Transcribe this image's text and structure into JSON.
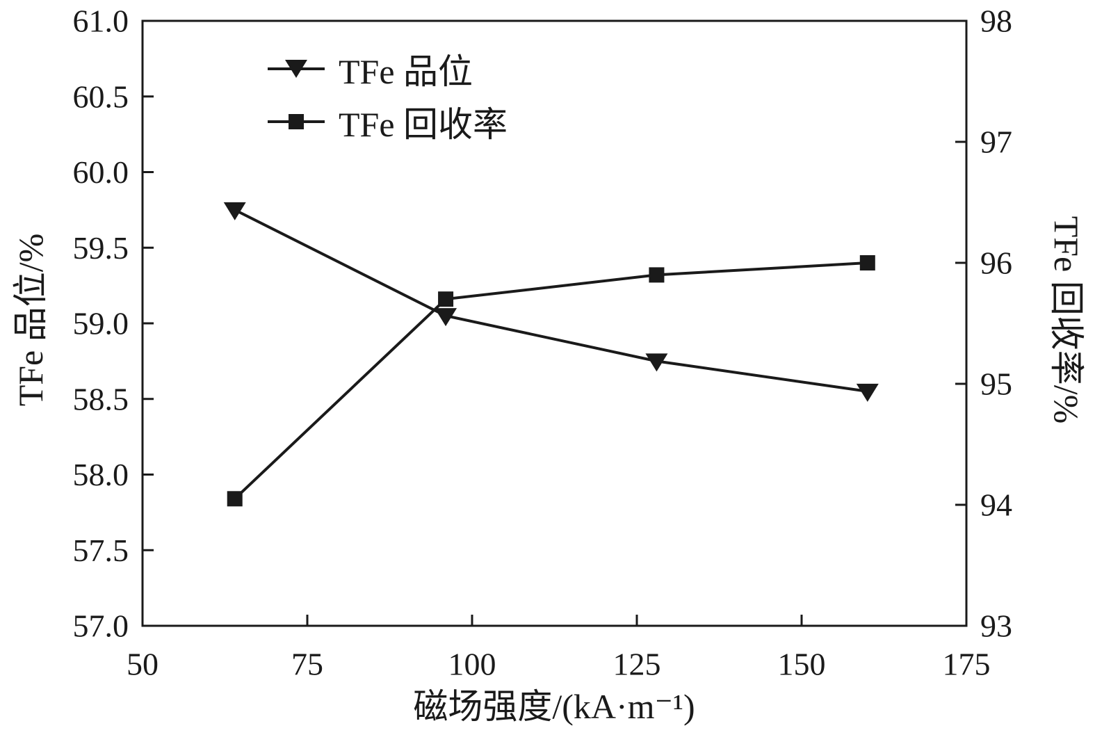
{
  "chart_data": {
    "type": "line",
    "x": [
      64,
      96,
      128,
      160
    ],
    "series": [
      {
        "name": "TFe 品位",
        "axis": "left",
        "marker": "triangle-down",
        "values": [
          59.75,
          59.05,
          58.75,
          58.55
        ]
      },
      {
        "name": "TFe 回收率",
        "axis": "right",
        "marker": "square",
        "values": [
          94.05,
          95.7,
          95.9,
          96.0
        ]
      }
    ],
    "title": "",
    "xlabel": "磁场强度/(kA·m⁻¹)",
    "ylabel_left": "TFe 品位/%",
    "ylabel_right": "TFe 回收率/%",
    "xlim": [
      50,
      175
    ],
    "ylim_left": [
      57.0,
      61.0
    ],
    "ylim_right": [
      93,
      98
    ],
    "xticks": [
      "50",
      "75",
      "100",
      "125",
      "150",
      "175"
    ],
    "yticks_left": [
      "57.0",
      "57.5",
      "58.0",
      "58.5",
      "59.0",
      "59.5",
      "60.0",
      "60.5",
      "61.0"
    ],
    "yticks_right": [
      "93",
      "94",
      "95",
      "96",
      "97",
      "98"
    ],
    "grid": false,
    "legend_position": "upper-left-inside",
    "line_color": "#1a1a1a",
    "background_color": "#ffffff"
  }
}
